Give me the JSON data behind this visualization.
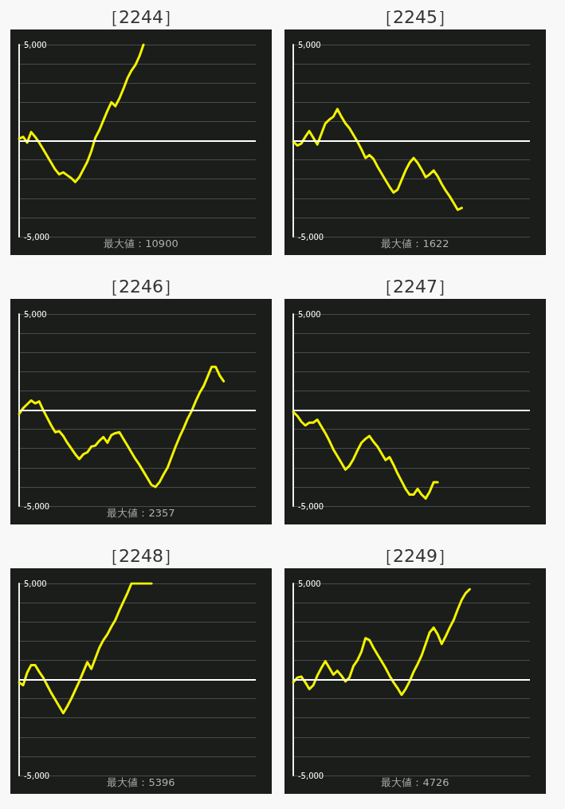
{
  "chart_data": [
    {
      "type": "line",
      "title": "［2244］",
      "categories": [
        null,
        null,
        null,
        null,
        null,
        null,
        null,
        null,
        null,
        null,
        null,
        null,
        null,
        null,
        null,
        null,
        null,
        null,
        null,
        null,
        null,
        null,
        null,
        null,
        null,
        null,
        null,
        null,
        null,
        null,
        null,
        null,
        null,
        null,
        null,
        null,
        null,
        null,
        null,
        null,
        null,
        null,
        null,
        null,
        null,
        null,
        null,
        null,
        null,
        null,
        null,
        null,
        null,
        null,
        null,
        null,
        null,
        null,
        null,
        null
      ],
      "values": [
        100,
        200,
        -100,
        450,
        200,
        -100,
        -450,
        -800,
        -1150,
        -1500,
        -1750,
        -1650,
        -1800,
        -1950,
        -2150,
        -1900,
        -1500,
        -1100,
        -550,
        150,
        550,
        1050,
        1550,
        2000,
        1800,
        2200,
        2700,
        3250,
        3650,
        3950,
        4400,
        5000,
        null,
        null,
        null,
        null,
        null,
        null,
        null,
        null,
        null,
        null,
        null,
        null,
        null,
        null,
        null,
        null,
        null,
        null,
        null,
        null,
        null,
        null,
        null,
        null,
        null,
        null,
        null,
        null
      ],
      "color": "#f2f200",
      "ylim": [
        -5000,
        5000
      ],
      "yticks": [
        {
          "value": -5000,
          "label": "-5,000"
        },
        {
          "value": -4000,
          "label": null
        },
        {
          "value": -3000,
          "label": null
        },
        {
          "value": -2000,
          "label": null
        },
        {
          "value": -1000,
          "label": null
        },
        {
          "value": 0,
          "label": null
        },
        {
          "value": 1000,
          "label": null
        },
        {
          "value": 2000,
          "label": null
        },
        {
          "value": 3000,
          "label": null
        },
        {
          "value": 4000,
          "label": null
        },
        {
          "value": 5000,
          "label": "5,000"
        }
      ],
      "grid": "y",
      "tick_labels": "y",
      "marker": "none",
      "ref_lines": [
        {
          "axis": "y",
          "value": 0,
          "color": "#ffffff"
        }
      ],
      "annotations": [
        "最大値：10900"
      ]
    },
    {
      "type": "line",
      "title": "［2245］",
      "categories": [
        null,
        null,
        null,
        null,
        null,
        null,
        null,
        null,
        null,
        null,
        null,
        null,
        null,
        null,
        null,
        null,
        null,
        null,
        null,
        null,
        null,
        null,
        null,
        null,
        null,
        null,
        null,
        null,
        null,
        null,
        null,
        null,
        null,
        null,
        null,
        null,
        null,
        null,
        null,
        null,
        null,
        null,
        null,
        null,
        null,
        null,
        null,
        null,
        null,
        null,
        null,
        null,
        null,
        null,
        null,
        null,
        null,
        null,
        null,
        null
      ],
      "values": [
        -50,
        -250,
        -150,
        200,
        500,
        150,
        -200,
        350,
        900,
        1100,
        1250,
        1650,
        1250,
        900,
        650,
        300,
        -50,
        -450,
        -900,
        -750,
        -950,
        -1350,
        -1700,
        -2050,
        -2400,
        -2700,
        -2550,
        -2050,
        -1550,
        -1150,
        -900,
        -1150,
        -1500,
        -1900,
        -1750,
        -1550,
        -1850,
        -2250,
        -2600,
        -2900,
        -3250,
        -3600,
        -3500,
        null,
        null,
        null,
        null,
        null,
        null,
        null,
        null,
        null,
        null,
        null,
        null,
        null,
        null,
        null,
        null,
        null
      ],
      "color": "#f2f200",
      "ylim": [
        -5000,
        5000
      ],
      "yticks": [
        {
          "value": -5000,
          "label": "-5,000"
        },
        {
          "value": -4000,
          "label": null
        },
        {
          "value": -3000,
          "label": null
        },
        {
          "value": -2000,
          "label": null
        },
        {
          "value": -1000,
          "label": null
        },
        {
          "value": 0,
          "label": null
        },
        {
          "value": 1000,
          "label": null
        },
        {
          "value": 2000,
          "label": null
        },
        {
          "value": 3000,
          "label": null
        },
        {
          "value": 4000,
          "label": null
        },
        {
          "value": 5000,
          "label": "5,000"
        }
      ],
      "grid": "y",
      "tick_labels": "y",
      "marker": "none",
      "ref_lines": [
        {
          "axis": "y",
          "value": 0,
          "color": "#ffffff"
        }
      ],
      "annotations": [
        "最大値：1622"
      ]
    },
    {
      "type": "line",
      "title": "［2246］",
      "categories": [
        null,
        null,
        null,
        null,
        null,
        null,
        null,
        null,
        null,
        null,
        null,
        null,
        null,
        null,
        null,
        null,
        null,
        null,
        null,
        null,
        null,
        null,
        null,
        null,
        null,
        null,
        null,
        null,
        null,
        null,
        null,
        null,
        null,
        null,
        null,
        null,
        null,
        null,
        null,
        null,
        null,
        null,
        null,
        null,
        null,
        null,
        null,
        null,
        null,
        null,
        null,
        null,
        null,
        null,
        null,
        null,
        null,
        null,
        null,
        null
      ],
      "values": [
        -200,
        100,
        300,
        500,
        350,
        450,
        0,
        -400,
        -800,
        -1150,
        -1100,
        -1350,
        -1700,
        -2000,
        -2300,
        -2550,
        -2300,
        -2200,
        -1900,
        -1850,
        -1600,
        -1400,
        -1700,
        -1300,
        -1200,
        -1150,
        -1500,
        -1850,
        -2200,
        -2550,
        -2850,
        -3200,
        -3550,
        -3900,
        -4000,
        -3750,
        -3350,
        -3000,
        -2450,
        -1900,
        -1400,
        -950,
        -450,
        -50,
        450,
        900,
        1250,
        1750,
        2250,
        2250,
        1800,
        1500,
        null,
        null,
        null,
        null,
        null,
        null,
        null,
        null
      ],
      "color": "#f2f200",
      "ylim": [
        -5000,
        5000
      ],
      "yticks": [
        {
          "value": -5000,
          "label": "-5,000"
        },
        {
          "value": -4000,
          "label": null
        },
        {
          "value": -3000,
          "label": null
        },
        {
          "value": -2000,
          "label": null
        },
        {
          "value": -1000,
          "label": null
        },
        {
          "value": 0,
          "label": null
        },
        {
          "value": 1000,
          "label": null
        },
        {
          "value": 2000,
          "label": null
        },
        {
          "value": 3000,
          "label": null
        },
        {
          "value": 4000,
          "label": null
        },
        {
          "value": 5000,
          "label": "5,000"
        }
      ],
      "grid": "y",
      "tick_labels": "y",
      "marker": "none",
      "ref_lines": [
        {
          "axis": "y",
          "value": 0,
          "color": "#ffffff"
        }
      ],
      "annotations": [
        "最大値：2357"
      ]
    },
    {
      "type": "line",
      "title": "［2247］",
      "categories": [
        null,
        null,
        null,
        null,
        null,
        null,
        null,
        null,
        null,
        null,
        null,
        null,
        null,
        null,
        null,
        null,
        null,
        null,
        null,
        null,
        null,
        null,
        null,
        null,
        null,
        null,
        null,
        null,
        null,
        null,
        null,
        null,
        null,
        null,
        null,
        null,
        null,
        null,
        null,
        null,
        null,
        null,
        null,
        null,
        null,
        null,
        null,
        null,
        null,
        null,
        null,
        null,
        null,
        null,
        null,
        null,
        null,
        null,
        null,
        null
      ],
      "values": [
        -100,
        -300,
        -600,
        -800,
        -650,
        -650,
        -500,
        -850,
        -1200,
        -1600,
        -2050,
        -2400,
        -2750,
        -3100,
        -2900,
        -2550,
        -2100,
        -1700,
        -1500,
        -1350,
        -1650,
        -1900,
        -2250,
        -2600,
        -2450,
        -2850,
        -3300,
        -3700,
        -4100,
        -4400,
        -4400,
        -4100,
        -4400,
        -4600,
        -4250,
        -3750,
        -3750,
        null,
        null,
        null,
        null,
        null,
        null,
        null,
        null,
        null,
        null,
        null,
        null,
        null,
        null,
        null,
        null,
        null,
        null,
        null,
        null,
        null,
        null,
        null
      ],
      "color": "#f2f200",
      "ylim": [
        -5000,
        5000
      ],
      "yticks": [
        {
          "value": -5000,
          "label": "-5,000"
        },
        {
          "value": -4000,
          "label": null
        },
        {
          "value": -3000,
          "label": null
        },
        {
          "value": -2000,
          "label": null
        },
        {
          "value": -1000,
          "label": null
        },
        {
          "value": 0,
          "label": null
        },
        {
          "value": 1000,
          "label": null
        },
        {
          "value": 2000,
          "label": null
        },
        {
          "value": 3000,
          "label": null
        },
        {
          "value": 4000,
          "label": null
        },
        {
          "value": 5000,
          "label": "5,000"
        }
      ],
      "grid": "y",
      "tick_labels": "y",
      "marker": "none",
      "ref_lines": [
        {
          "axis": "y",
          "value": 0,
          "color": "#ffffff"
        }
      ]
    },
    {
      "type": "line",
      "title": "［2248］",
      "categories": [
        null,
        null,
        null,
        null,
        null,
        null,
        null,
        null,
        null,
        null,
        null,
        null,
        null,
        null,
        null,
        null,
        null,
        null,
        null,
        null,
        null,
        null,
        null,
        null,
        null,
        null,
        null,
        null,
        null,
        null,
        null,
        null,
        null,
        null,
        null,
        null,
        null,
        null,
        null,
        null,
        null,
        null,
        null,
        null,
        null,
        null,
        null,
        null,
        null,
        null,
        null,
        null,
        null,
        null,
        null,
        null,
        null,
        null,
        null,
        null
      ],
      "values": [
        -150,
        -300,
        350,
        750,
        750,
        400,
        100,
        -300,
        -700,
        -1050,
        -1400,
        -1750,
        -1400,
        -1000,
        -550,
        -100,
        400,
        900,
        550,
        1100,
        1650,
        2050,
        2350,
        2750,
        3100,
        3600,
        4050,
        4500,
        5000,
        5000,
        5000,
        5000,
        5000,
        5000,
        null,
        null,
        null,
        null,
        null,
        null,
        null,
        null,
        null,
        null,
        null,
        null,
        null,
        null,
        null,
        null,
        null,
        null,
        null,
        null,
        null,
        null,
        null,
        null,
        null,
        null
      ],
      "color": "#f2f200",
      "ylim": [
        -5000,
        5000
      ],
      "yticks": [
        {
          "value": -5000,
          "label": "-5,000"
        },
        {
          "value": -4000,
          "label": null
        },
        {
          "value": -3000,
          "label": null
        },
        {
          "value": -2000,
          "label": null
        },
        {
          "value": -1000,
          "label": null
        },
        {
          "value": 0,
          "label": null
        },
        {
          "value": 1000,
          "label": null
        },
        {
          "value": 2000,
          "label": null
        },
        {
          "value": 3000,
          "label": null
        },
        {
          "value": 4000,
          "label": null
        },
        {
          "value": 5000,
          "label": "5,000"
        }
      ],
      "grid": "y",
      "tick_labels": "y",
      "marker": "none",
      "ref_lines": [
        {
          "axis": "y",
          "value": 0,
          "color": "#ffffff"
        }
      ],
      "annotations": [
        "最大値：5396"
      ]
    },
    {
      "type": "line",
      "title": "［2249］",
      "categories": [
        null,
        null,
        null,
        null,
        null,
        null,
        null,
        null,
        null,
        null,
        null,
        null,
        null,
        null,
        null,
        null,
        null,
        null,
        null,
        null,
        null,
        null,
        null,
        null,
        null,
        null,
        null,
        null,
        null,
        null,
        null,
        null,
        null,
        null,
        null,
        null,
        null,
        null,
        null,
        null,
        null,
        null,
        null,
        null,
        null,
        null,
        null,
        null,
        null,
        null,
        null,
        null,
        null,
        null,
        null,
        null,
        null,
        null,
        null,
        null
      ],
      "values": [
        -150,
        100,
        150,
        -150,
        -500,
        -300,
        200,
        600,
        950,
        600,
        250,
        450,
        200,
        -100,
        100,
        700,
        1000,
        1450,
        2150,
        2050,
        1650,
        1300,
        950,
        600,
        200,
        -150,
        -450,
        -800,
        -500,
        -100,
        400,
        800,
        1250,
        1850,
        2450,
        2700,
        2350,
        1850,
        2250,
        2700,
        3100,
        3650,
        4150,
        4500,
        4700,
        null,
        null,
        null,
        null,
        null,
        null,
        null,
        null,
        null,
        null,
        null,
        null,
        null,
        null,
        null
      ],
      "color": "#f2f200",
      "ylim": [
        -5000,
        5000
      ],
      "yticks": [
        {
          "value": -5000,
          "label": "-5,000"
        },
        {
          "value": -4000,
          "label": null
        },
        {
          "value": -3000,
          "label": null
        },
        {
          "value": -2000,
          "label": null
        },
        {
          "value": -1000,
          "label": null
        },
        {
          "value": 0,
          "label": null
        },
        {
          "value": 1000,
          "label": null
        },
        {
          "value": 2000,
          "label": null
        },
        {
          "value": 3000,
          "label": null
        },
        {
          "value": 4000,
          "label": null
        },
        {
          "value": 5000,
          "label": "5,000"
        }
      ],
      "grid": "y",
      "tick_labels": "y",
      "marker": "none",
      "ref_lines": [
        {
          "axis": "y",
          "value": 0,
          "color": "#ffffff"
        }
      ],
      "annotations": [
        "最大値：4726"
      ]
    }
  ]
}
